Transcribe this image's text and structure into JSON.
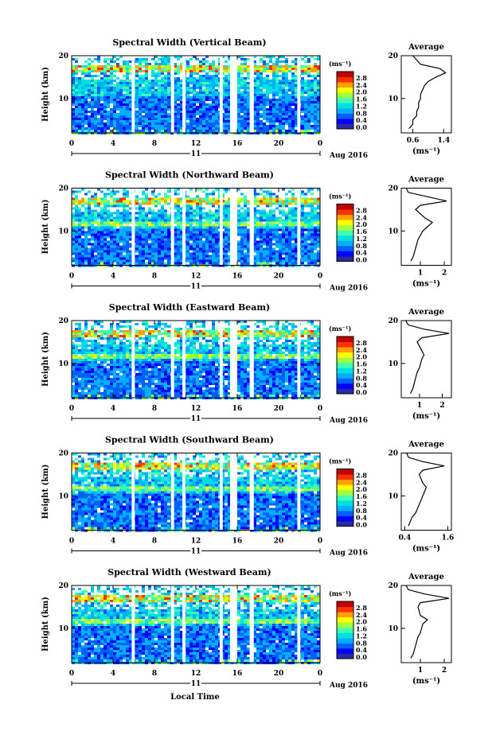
{
  "figure": {
    "x_axis_title": "Local Time",
    "date_label": "Aug 2016",
    "day_label": "11",
    "y_axis_title": "Height (km)",
    "colorbar_unit": "(ms⁻¹)",
    "avg_title": "Average",
    "avg_unit": "(ms⁻¹)",
    "colormap": [
      "#2a2aa0",
      "#0000ff",
      "#0060ff",
      "#00b0ff",
      "#00e0e0",
      "#40ffb0",
      "#a0ff40",
      "#ffff00",
      "#ffa000",
      "#ff3000",
      "#c00000"
    ],
    "colorbar_ticks": [
      "0.0",
      "0.4",
      "0.8",
      "1.2",
      "1.6",
      "2.0",
      "2.4",
      "2.8"
    ]
  },
  "chart_data": [
    {
      "type": "heatmap",
      "title": "Spectral Width (Vertical Beam)",
      "xlabel": "Local Time",
      "ylabel": "Height (km)",
      "xlim": [
        0,
        24
      ],
      "ylim": [
        2,
        20
      ],
      "x_ticks": [
        "0",
        "4",
        "8",
        "12",
        "16",
        "20",
        "0"
      ],
      "y_ticks": [
        "10",
        "20"
      ],
      "gaps_hours": [
        [
          5.8,
          6.1
        ],
        [
          9.6,
          9.9
        ],
        [
          10.7,
          11.0
        ],
        [
          14.3,
          14.6
        ],
        [
          15.3,
          16.0
        ],
        [
          17.2,
          17.6
        ],
        [
          21.8,
          22.1
        ]
      ],
      "average_profile": {
        "x_ticks": [
          "0.6",
          "1.4"
        ],
        "xlim": [
          0.3,
          1.6
        ],
        "height": [
          3,
          4,
          5,
          6,
          7,
          8,
          9,
          10,
          11,
          12,
          13,
          14,
          15,
          16,
          17,
          18,
          19,
          20
        ],
        "value": [
          0.5,
          0.6,
          0.6,
          0.7,
          0.7,
          0.75,
          0.75,
          0.8,
          0.8,
          0.85,
          0.9,
          1.0,
          1.2,
          1.45,
          1.3,
          0.8,
          0.7,
          0.6
        ]
      }
    },
    {
      "type": "heatmap",
      "title": "Spectral Width (Northward Beam)",
      "xlabel": "Local Time",
      "ylabel": "Height (km)",
      "xlim": [
        0,
        24
      ],
      "ylim": [
        2,
        20
      ],
      "x_ticks": [
        "0",
        "4",
        "8",
        "12",
        "16",
        "20",
        "0"
      ],
      "y_ticks": [
        "10",
        "20"
      ],
      "gaps_hours": [
        [
          5.8,
          6.1
        ],
        [
          9.6,
          9.9
        ],
        [
          10.7,
          11.0
        ],
        [
          14.3,
          14.6
        ],
        [
          15.3,
          16.0
        ],
        [
          17.2,
          17.6
        ],
        [
          21.8,
          22.1
        ]
      ],
      "average_profile": {
        "x_ticks": [
          "1",
          "2"
        ],
        "xlim": [
          0.2,
          2.3
        ],
        "height": [
          3,
          4,
          5,
          6,
          7,
          8,
          9,
          10,
          11,
          12,
          13,
          14,
          15,
          16,
          17,
          18,
          19,
          20
        ],
        "value": [
          0.6,
          0.7,
          0.75,
          0.8,
          0.85,
          0.9,
          1.0,
          1.1,
          1.3,
          1.5,
          1.2,
          1.0,
          0.8,
          1.0,
          2.1,
          1.3,
          0.5,
          0.4
        ]
      }
    },
    {
      "type": "heatmap",
      "title": "Spectral Width (Eastward Beam)",
      "xlabel": "Local Time",
      "ylabel": "Height (km)",
      "xlim": [
        0,
        24
      ],
      "ylim": [
        2,
        20
      ],
      "x_ticks": [
        "0",
        "4",
        "8",
        "12",
        "16",
        "20",
        "0"
      ],
      "y_ticks": [
        "10",
        "20"
      ],
      "gaps_hours": [
        [
          5.8,
          6.1
        ],
        [
          9.6,
          9.9
        ],
        [
          10.7,
          11.0
        ],
        [
          14.3,
          14.6
        ],
        [
          15.3,
          16.0
        ],
        [
          17.2,
          17.6
        ],
        [
          21.8,
          22.1
        ]
      ],
      "average_profile": {
        "x_ticks": [
          "1",
          "2"
        ],
        "xlim": [
          0.2,
          2.4
        ],
        "height": [
          3,
          4,
          5,
          6,
          7,
          8,
          9,
          10,
          11,
          12,
          13,
          14,
          15,
          16,
          17,
          18,
          19,
          20
        ],
        "value": [
          0.6,
          0.7,
          0.75,
          0.8,
          0.85,
          0.9,
          1.0,
          1.05,
          1.1,
          1.2,
          1.1,
          1.0,
          0.9,
          1.1,
          2.3,
          1.2,
          0.5,
          0.4
        ]
      }
    },
    {
      "type": "heatmap",
      "title": "Spectral Width (Southward Beam)",
      "xlabel": "Local Time",
      "ylabel": "Height (km)",
      "xlim": [
        0,
        24
      ],
      "ylim": [
        2,
        20
      ],
      "x_ticks": [
        "0",
        "4",
        "8",
        "12",
        "16",
        "20",
        "0"
      ],
      "y_ticks": [
        "10",
        "20"
      ],
      "gaps_hours": [
        [
          5.8,
          6.1
        ],
        [
          9.6,
          9.9
        ],
        [
          10.7,
          11.0
        ],
        [
          14.3,
          14.6
        ],
        [
          15.3,
          16.0
        ],
        [
          17.2,
          17.6
        ],
        [
          21.8,
          22.1
        ]
      ],
      "average_profile": {
        "x_ticks": [
          "0.4",
          "1.6"
        ],
        "xlim": [
          0.3,
          1.7
        ],
        "height": [
          3,
          4,
          5,
          6,
          7,
          8,
          9,
          10,
          11,
          12,
          13,
          14,
          15,
          16,
          17,
          18,
          19,
          20
        ],
        "value": [
          0.5,
          0.55,
          0.6,
          0.7,
          0.75,
          0.8,
          0.85,
          0.9,
          0.95,
          1.0,
          0.9,
          0.85,
          0.8,
          0.9,
          1.5,
          0.9,
          0.5,
          0.45
        ]
      }
    },
    {
      "type": "heatmap",
      "title": "Spectral Width (Westward Beam)",
      "xlabel": "Local Time",
      "ylabel": "Height (km)",
      "xlim": [
        0,
        24
      ],
      "ylim": [
        2,
        20
      ],
      "x_ticks": [
        "0",
        "4",
        "8",
        "12",
        "16",
        "20",
        "0"
      ],
      "y_ticks": [
        "10",
        "20"
      ],
      "gaps_hours": [
        [
          5.8,
          6.1
        ],
        [
          9.6,
          9.9
        ],
        [
          10.7,
          11.0
        ],
        [
          14.3,
          14.6
        ],
        [
          15.3,
          16.0
        ],
        [
          17.2,
          17.6
        ],
        [
          21.8,
          22.1
        ]
      ],
      "average_profile": {
        "x_ticks": [
          "1",
          "2"
        ],
        "xlim": [
          0.2,
          2.3
        ],
        "height": [
          3,
          4,
          5,
          6,
          7,
          8,
          9,
          10,
          11,
          12,
          13,
          14,
          15,
          16,
          17,
          18,
          19,
          20
        ],
        "value": [
          0.6,
          0.7,
          0.75,
          0.8,
          0.85,
          0.9,
          1.0,
          1.05,
          1.1,
          1.3,
          1.0,
          0.95,
          0.9,
          1.0,
          2.2,
          1.2,
          0.5,
          0.4
        ]
      }
    }
  ]
}
